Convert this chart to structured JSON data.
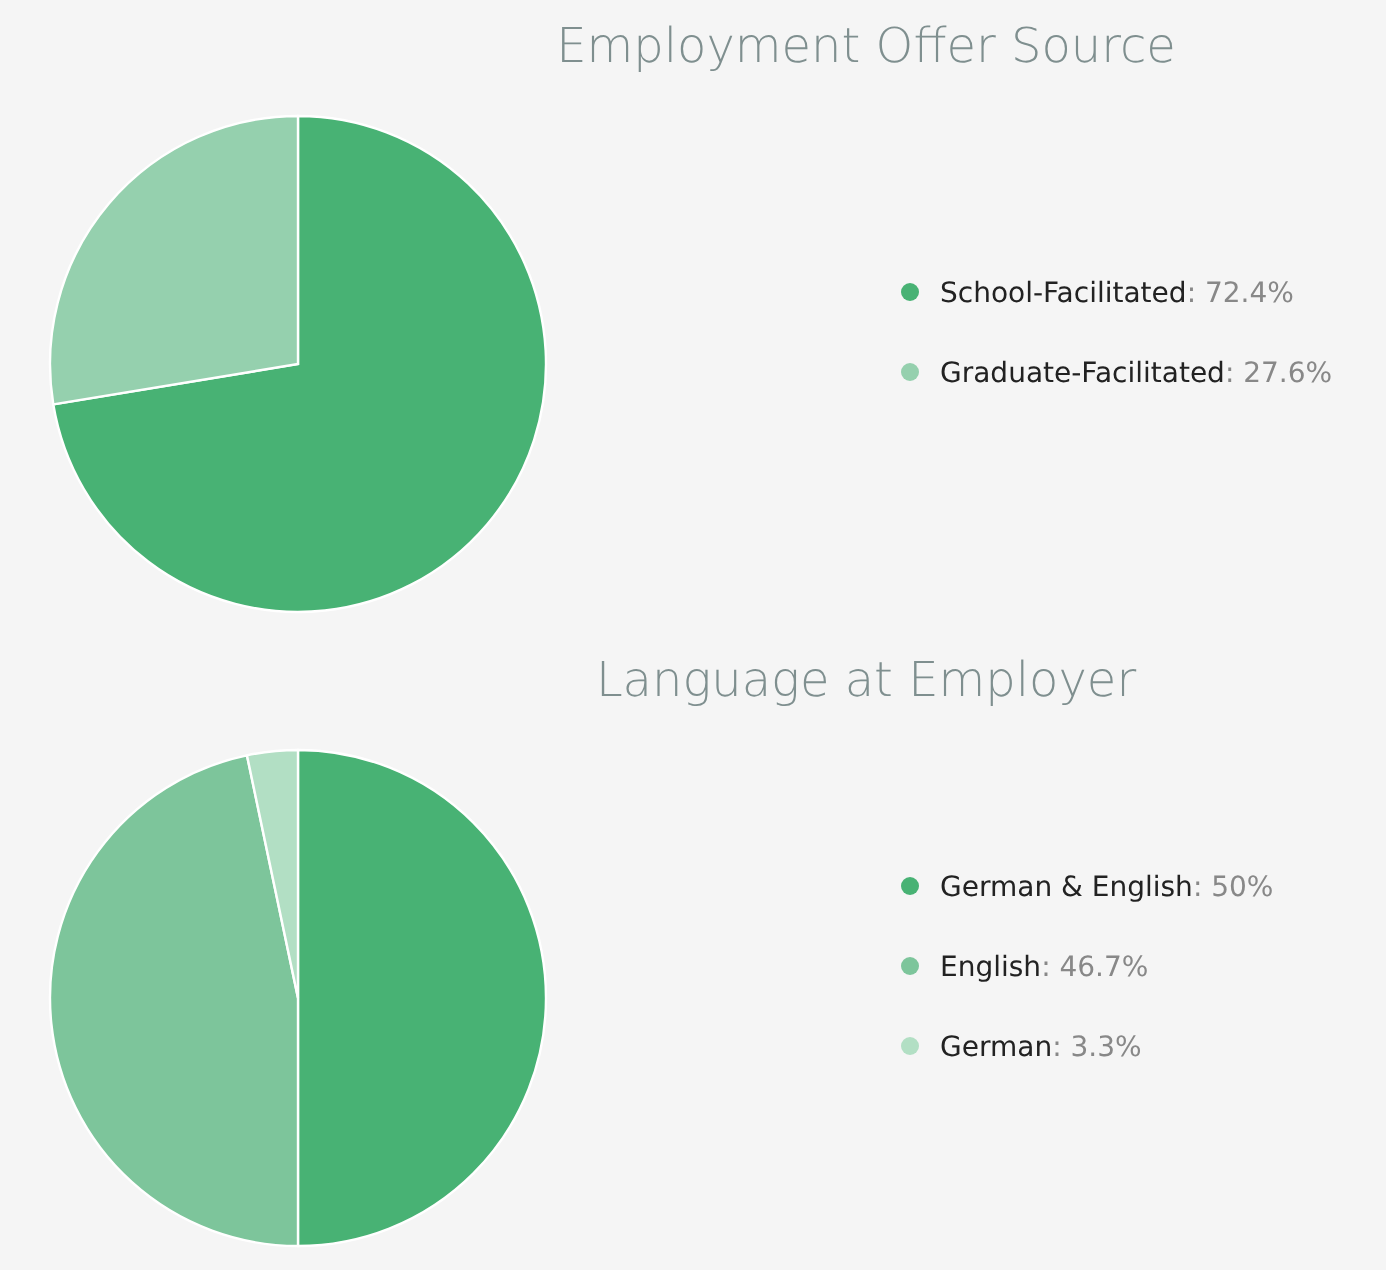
{
  "chart_data": [
    {
      "type": "pie",
      "title": "Employment Offer Source",
      "categories": [
        "School-Facilitated",
        "Graduate-Facilitated"
      ],
      "values": [
        72.4,
        27.6
      ],
      "colors": [
        "#48b274",
        "#95d0ae"
      ],
      "value_labels": [
        ": 72.4%",
        ": 27.6%"
      ],
      "legend": "right"
    },
    {
      "type": "pie",
      "title": "Language at Employer",
      "categories": [
        "German & English",
        "English",
        "German"
      ],
      "values": [
        50,
        46.7,
        3.3
      ],
      "colors": [
        "#48b274",
        "#7dc59b",
        "#b2dfc4"
      ],
      "value_labels": [
        ": 50%",
        ": 46.7%",
        ": 3.3%"
      ],
      "legend": "right"
    }
  ]
}
